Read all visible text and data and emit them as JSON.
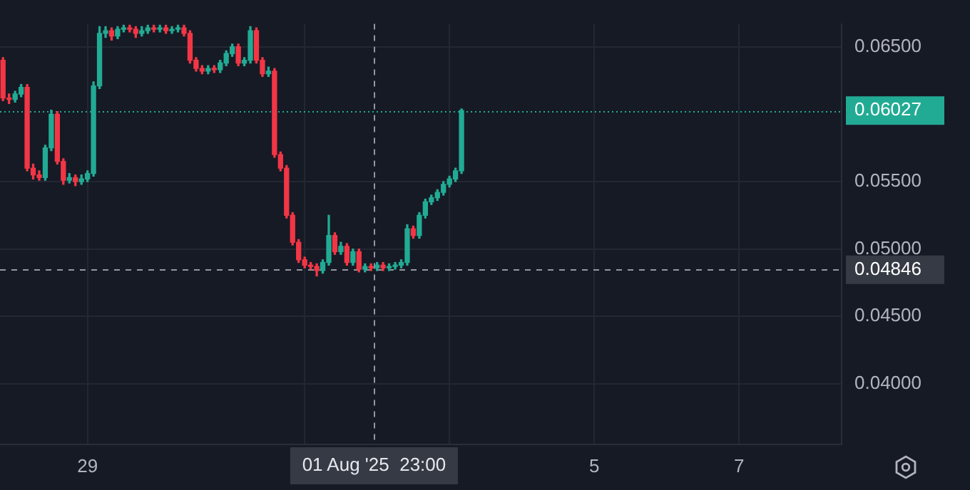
{
  "chart_data": {
    "type": "candlestick",
    "x": [
      "2025-07-27T20:00",
      "2025-07-27T22:00",
      "2025-07-28T00:00",
      "2025-07-28T02:00",
      "2025-07-28T04:00",
      "2025-07-28T06:00",
      "2025-07-28T08:00",
      "2025-07-28T10:00",
      "2025-07-28T12:00",
      "2025-07-28T14:00",
      "2025-07-28T16:00",
      "2025-07-28T18:00",
      "2025-07-28T20:00",
      "2025-07-28T22:00",
      "2025-07-29T00:00",
      "2025-07-29T02:00",
      "2025-07-29T04:00",
      "2025-07-29T06:00",
      "2025-07-29T08:00",
      "2025-07-29T10:00",
      "2025-07-29T12:00",
      "2025-07-29T14:00",
      "2025-07-29T16:00",
      "2025-07-29T18:00",
      "2025-07-29T20:00",
      "2025-07-29T22:00",
      "2025-07-30T00:00",
      "2025-07-30T02:00",
      "2025-07-30T04:00",
      "2025-07-30T06:00",
      "2025-07-30T08:00",
      "2025-07-30T10:00",
      "2025-07-30T12:00",
      "2025-07-30T14:00",
      "2025-07-30T16:00",
      "2025-07-30T18:00",
      "2025-07-30T20:00",
      "2025-07-30T22:00",
      "2025-07-31T00:00",
      "2025-07-31T02:00",
      "2025-07-31T04:00",
      "2025-07-31T06:00",
      "2025-07-31T08:00",
      "2025-07-31T10:00",
      "2025-07-31T12:00",
      "2025-07-31T14:00",
      "2025-07-31T16:00",
      "2025-07-31T18:00",
      "2025-07-31T20:00",
      "2025-07-31T22:00",
      "2025-08-01T00:00",
      "2025-08-01T02:00",
      "2025-08-01T04:00",
      "2025-08-01T06:00",
      "2025-08-01T08:00",
      "2025-08-01T10:00",
      "2025-08-01T12:00",
      "2025-08-01T14:00",
      "2025-08-01T16:00",
      "2025-08-01T18:00",
      "2025-08-01T20:00",
      "2025-08-01T22:00",
      "2025-08-02T00:00",
      "2025-08-02T02:00",
      "2025-08-02T04:00",
      "2025-08-02T06:00",
      "2025-08-02T08:00",
      "2025-08-02T10:00",
      "2025-08-02T12:00",
      "2025-08-02T14:00",
      "2025-08-02T16:00",
      "2025-08-02T18:00",
      "2025-08-02T20:00",
      "2025-08-02T22:00",
      "2025-08-03T00:00",
      "2025-08-03T02:00",
      "2025-08-03T04:00"
    ],
    "ohlc": [
      [
        0.064,
        0.0642,
        0.061,
        0.0612
      ],
      [
        0.0612,
        0.0615,
        0.0608,
        0.0611
      ],
      [
        0.0611,
        0.0617,
        0.0609,
        0.0615
      ],
      [
        0.0615,
        0.0622,
        0.0613,
        0.062
      ],
      [
        0.062,
        0.0622,
        0.0558,
        0.056
      ],
      [
        0.056,
        0.0563,
        0.0552,
        0.0555
      ],
      [
        0.0555,
        0.0558,
        0.0551,
        0.0553
      ],
      [
        0.0553,
        0.0577,
        0.0551,
        0.0575
      ],
      [
        0.0575,
        0.0603,
        0.0573,
        0.06
      ],
      [
        0.06,
        0.0602,
        0.0563,
        0.0565
      ],
      [
        0.0565,
        0.0567,
        0.0548,
        0.0551
      ],
      [
        0.0551,
        0.0556,
        0.0549,
        0.0553
      ],
      [
        0.0553,
        0.0555,
        0.0547,
        0.055
      ],
      [
        0.055,
        0.0555,
        0.0548,
        0.0552
      ],
      [
        0.0552,
        0.0558,
        0.055,
        0.0556
      ],
      [
        0.0556,
        0.0624,
        0.0554,
        0.0621
      ],
      [
        0.0621,
        0.0665,
        0.0619,
        0.066
      ],
      [
        0.066,
        0.0665,
        0.0657,
        0.0662
      ],
      [
        0.0662,
        0.0664,
        0.0655,
        0.0658
      ],
      [
        0.0658,
        0.0665,
        0.0656,
        0.0663
      ],
      [
        0.0663,
        0.0666,
        0.0661,
        0.0664
      ],
      [
        0.0664,
        0.0666,
        0.0661,
        0.0663
      ],
      [
        0.0663,
        0.0665,
        0.0657,
        0.066
      ],
      [
        0.066,
        0.0665,
        0.0658,
        0.0662
      ],
      [
        0.0662,
        0.0666,
        0.066,
        0.0664
      ],
      [
        0.0664,
        0.0666,
        0.0661,
        0.0663
      ],
      [
        0.0663,
        0.0666,
        0.0661,
        0.0664
      ],
      [
        0.0664,
        0.0666,
        0.066,
        0.0662
      ],
      [
        0.0662,
        0.0665,
        0.066,
        0.0663
      ],
      [
        0.0663,
        0.0666,
        0.0661,
        0.0664
      ],
      [
        0.0664,
        0.0666,
        0.0658,
        0.066
      ],
      [
        0.066,
        0.0662,
        0.0638,
        0.064
      ],
      [
        0.064,
        0.0642,
        0.0632,
        0.0634
      ],
      [
        0.0634,
        0.0636,
        0.063,
        0.0632
      ],
      [
        0.0632,
        0.0636,
        0.063,
        0.0634
      ],
      [
        0.0634,
        0.0636,
        0.0631,
        0.0633
      ],
      [
        0.0633,
        0.064,
        0.0631,
        0.0638
      ],
      [
        0.0638,
        0.0647,
        0.0636,
        0.0645
      ],
      [
        0.0645,
        0.0652,
        0.0643,
        0.065
      ],
      [
        0.065,
        0.0652,
        0.0636,
        0.0638
      ],
      [
        0.0638,
        0.0642,
        0.0636,
        0.064
      ],
      [
        0.064,
        0.0665,
        0.0638,
        0.0662
      ],
      [
        0.0662,
        0.0664,
        0.0638,
        0.064
      ],
      [
        0.064,
        0.0642,
        0.0628,
        0.063
      ],
      [
        0.063,
        0.0635,
        0.0628,
        0.0632
      ],
      [
        0.0632,
        0.0634,
        0.0568,
        0.057
      ],
      [
        0.057,
        0.0572,
        0.0558,
        0.056
      ],
      [
        0.056,
        0.0562,
        0.0523,
        0.0525
      ],
      [
        0.0525,
        0.0527,
        0.0503,
        0.0505
      ],
      [
        0.0505,
        0.0507,
        0.049,
        0.0492
      ],
      [
        0.0492,
        0.0494,
        0.0486,
        0.0488
      ],
      [
        0.0488,
        0.049,
        0.0485,
        0.0487
      ],
      [
        0.0487,
        0.0489,
        0.048,
        0.0484
      ],
      [
        0.0484,
        0.0492,
        0.0482,
        0.049
      ],
      [
        0.049,
        0.0525,
        0.0488,
        0.051
      ],
      [
        0.051,
        0.0512,
        0.0496,
        0.0498
      ],
      [
        0.0498,
        0.0505,
        0.0496,
        0.0502
      ],
      [
        0.0502,
        0.0504,
        0.0488,
        0.049
      ],
      [
        0.049,
        0.05,
        0.0488,
        0.0498
      ],
      [
        0.0498,
        0.05,
        0.0483,
        0.0485
      ],
      [
        0.0485,
        0.0489,
        0.0483,
        0.0487
      ],
      [
        0.0487,
        0.0489,
        0.0484,
        0.0486
      ],
      [
        0.0486,
        0.049,
        0.0484,
        0.0488
      ],
      [
        0.0488,
        0.049,
        0.0484,
        0.0486
      ],
      [
        0.0486,
        0.0489,
        0.0484,
        0.0487
      ],
      [
        0.0487,
        0.049,
        0.0485,
        0.0488
      ],
      [
        0.0488,
        0.0492,
        0.0486,
        0.049
      ],
      [
        0.049,
        0.0518,
        0.0488,
        0.0515
      ],
      [
        0.0515,
        0.0517,
        0.0508,
        0.051
      ],
      [
        0.051,
        0.0527,
        0.0508,
        0.0525
      ],
      [
        0.0525,
        0.0537,
        0.0523,
        0.0535
      ],
      [
        0.0535,
        0.054,
        0.0533,
        0.0538
      ],
      [
        0.0538,
        0.0544,
        0.0536,
        0.0542
      ],
      [
        0.0542,
        0.055,
        0.054,
        0.0548
      ],
      [
        0.0548,
        0.0554,
        0.0546,
        0.0552
      ],
      [
        0.0552,
        0.056,
        0.055,
        0.0558
      ],
      [
        0.0558,
        0.0604,
        0.0556,
        0.06027
      ]
    ],
    "xlim": [
      "2025-07-27T19:00",
      "2025-08-08T10:00"
    ],
    "xticks": [
      {
        "value": "2025-07-29",
        "label": "29"
      },
      {
        "value": "2025-08-01",
        "label": null
      },
      {
        "value": "2025-08-03",
        "label": null
      },
      {
        "value": "2025-08-05",
        "label": "5"
      },
      {
        "value": "2025-08-07",
        "label": "7"
      }
    ],
    "ylim": [
      0.0355,
      0.0667
    ],
    "yticks": [
      {
        "value": 0.04,
        "label": "0.04000"
      },
      {
        "value": 0.045,
        "label": "0.04500"
      },
      {
        "value": 0.05,
        "label": "0.05000"
      },
      {
        "value": 0.055,
        "label": "0.05500"
      },
      {
        "value": 0.065,
        "label": "0.06500"
      }
    ],
    "grid": true,
    "ref_lines": [
      {
        "axis": "y",
        "value": 0.06027,
        "label": "0.06027",
        "color": "#22ab94",
        "line_style": "dotted"
      },
      {
        "axis": "y",
        "value": 0.04846,
        "label": "0.04846",
        "color": "#9598a1",
        "line_style": "dashed"
      },
      {
        "axis": "x",
        "value": "2025-08-01T23:00",
        "label": "01 Aug '25  23:00",
        "color": "#9598a1",
        "line_style": "dashed"
      }
    ]
  }
}
